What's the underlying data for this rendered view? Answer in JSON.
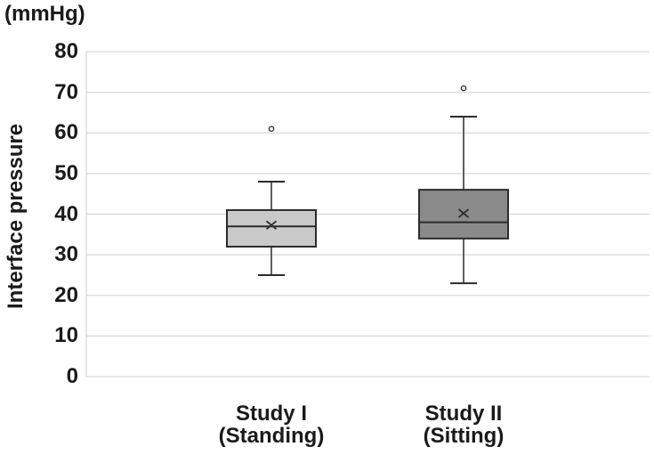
{
  "chart_data": {
    "type": "box",
    "unit_label": "(mmHg)",
    "ylabel": "Interface pressure",
    "xlabel": "",
    "ylim": [
      0,
      80
    ],
    "yticks": [
      0,
      10,
      20,
      30,
      40,
      50,
      60,
      70,
      80
    ],
    "grid": "horizontal",
    "legend": "none",
    "categories": [
      {
        "label_line1": "Study I",
        "label_line2": "(Standing)"
      },
      {
        "label_line1": "Study II",
        "label_line2": "(Sitting)"
      }
    ],
    "series": [
      {
        "name": "Study I (Standing)",
        "whisker_low": 25,
        "q1": 32,
        "median": 37,
        "mean": 37.3,
        "q3": 41,
        "whisker_high": 48,
        "outliers": [
          61
        ],
        "fill": "#c9c9c9"
      },
      {
        "name": "Study II (Sitting)",
        "whisker_low": 23,
        "q1": 34,
        "median": 38,
        "mean": 40.2,
        "q3": 46,
        "whisker_high": 64,
        "outliers": [
          71
        ],
        "fill": "#8a8a8a"
      }
    ],
    "colors": {
      "box_stroke": "#2b2b2b",
      "median_stroke": "#2b2b2b",
      "whisker_stroke": "#2b2b2b",
      "mean_marker_stroke": "#2b2b2b",
      "outlier_stroke": "#2b2b2b",
      "outlier_fill": "#ffffff",
      "gridline": "#d9d9d9",
      "axis_line": "#d5d5d5",
      "text": "#1a1a1a",
      "background": "#ffffff"
    }
  }
}
